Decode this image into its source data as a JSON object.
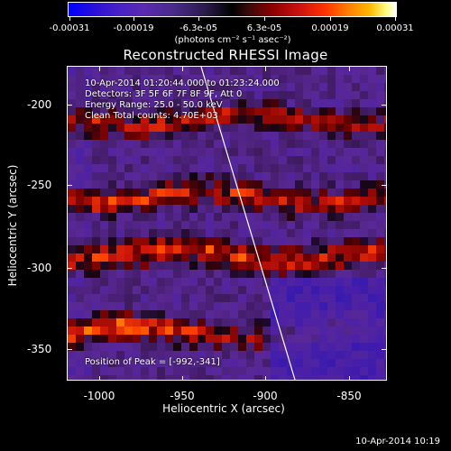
{
  "colorbar": {
    "ticks": [
      "-0.00031",
      "-0.00019",
      "-6.3e-05",
      "6.3e-05",
      "0.00019",
      "0.00031"
    ],
    "units": "(photons cm⁻² s⁻¹ asec⁻²)"
  },
  "plot": {
    "title": "Reconstructed RHESSI Image",
    "xlabel": "Heliocentric X (arcsec)",
    "ylabel": "Heliocentric Y (arcsec)",
    "xticks": [
      "-1000",
      "-950",
      "-900",
      "-850"
    ],
    "yticks": [
      "-200",
      "-250",
      "-300",
      "-350"
    ]
  },
  "info": {
    "time_range": "10-Apr-2014 01:20:44.000 to 01:23:24.000",
    "detectors": "Detectors: 3F 5F 6F 7F 8F 9F, Att 0",
    "energy": "Energy Range: 25.0 - 50.0 keV",
    "clean": "Clean    Total counts: 4.70E+03",
    "peak": "Position of Peak = [-992,-341]"
  },
  "footer": {
    "timestamp": "10-Apr-2014 10:19"
  }
}
